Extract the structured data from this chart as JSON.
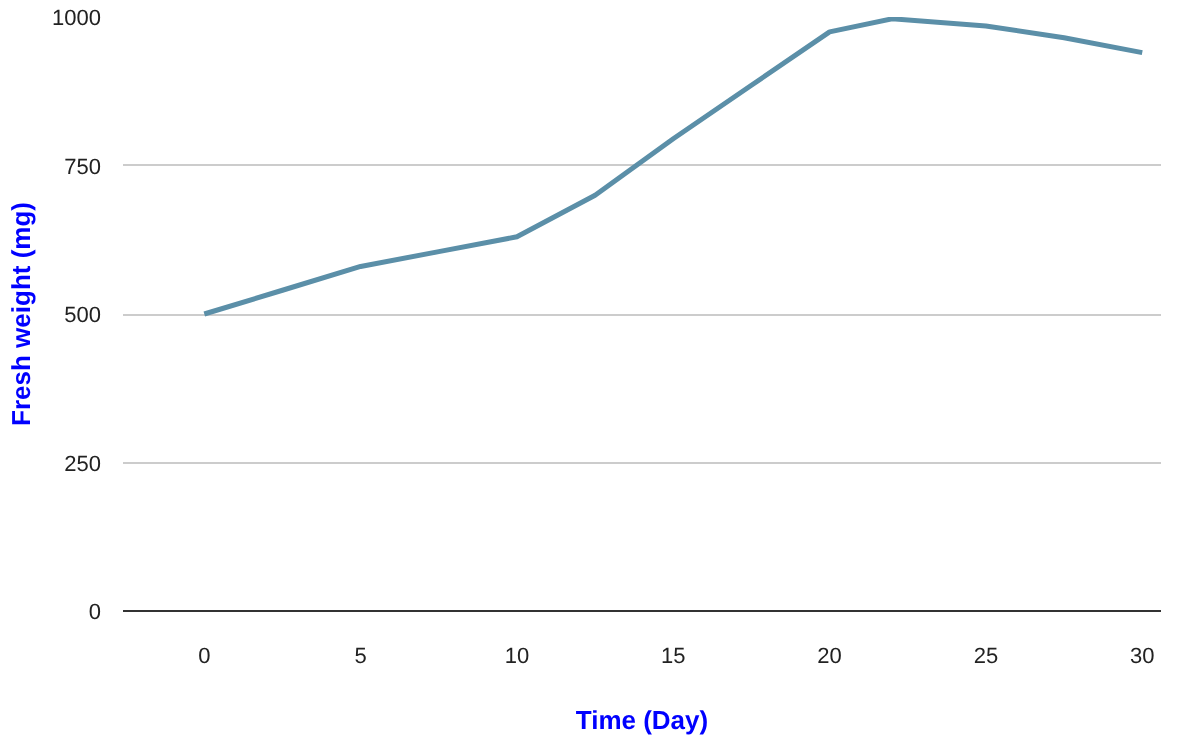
{
  "chart_data": {
    "type": "line",
    "xlabel": "Time (Day)",
    "ylabel": "Fresh weight (mg)",
    "x": [
      0,
      2.5,
      5,
      7.5,
      10,
      12.5,
      15,
      17.5,
      20,
      22,
      25,
      27.5,
      30
    ],
    "series": [
      {
        "color": "#5b8fa8",
        "values": [
          500,
          540,
          580,
          605,
          630,
          700,
          795,
          885,
          975,
          997,
          985,
          965,
          940
        ]
      }
    ],
    "xlim": [
      -2.6,
      30.6
    ],
    "ylim": [
      0,
      1000
    ],
    "xticks": [
      0,
      5,
      10,
      15,
      20,
      25,
      30
    ],
    "yticks": [
      0,
      250,
      500,
      750,
      1000
    ],
    "grid": "y",
    "line_style": "solid"
  }
}
